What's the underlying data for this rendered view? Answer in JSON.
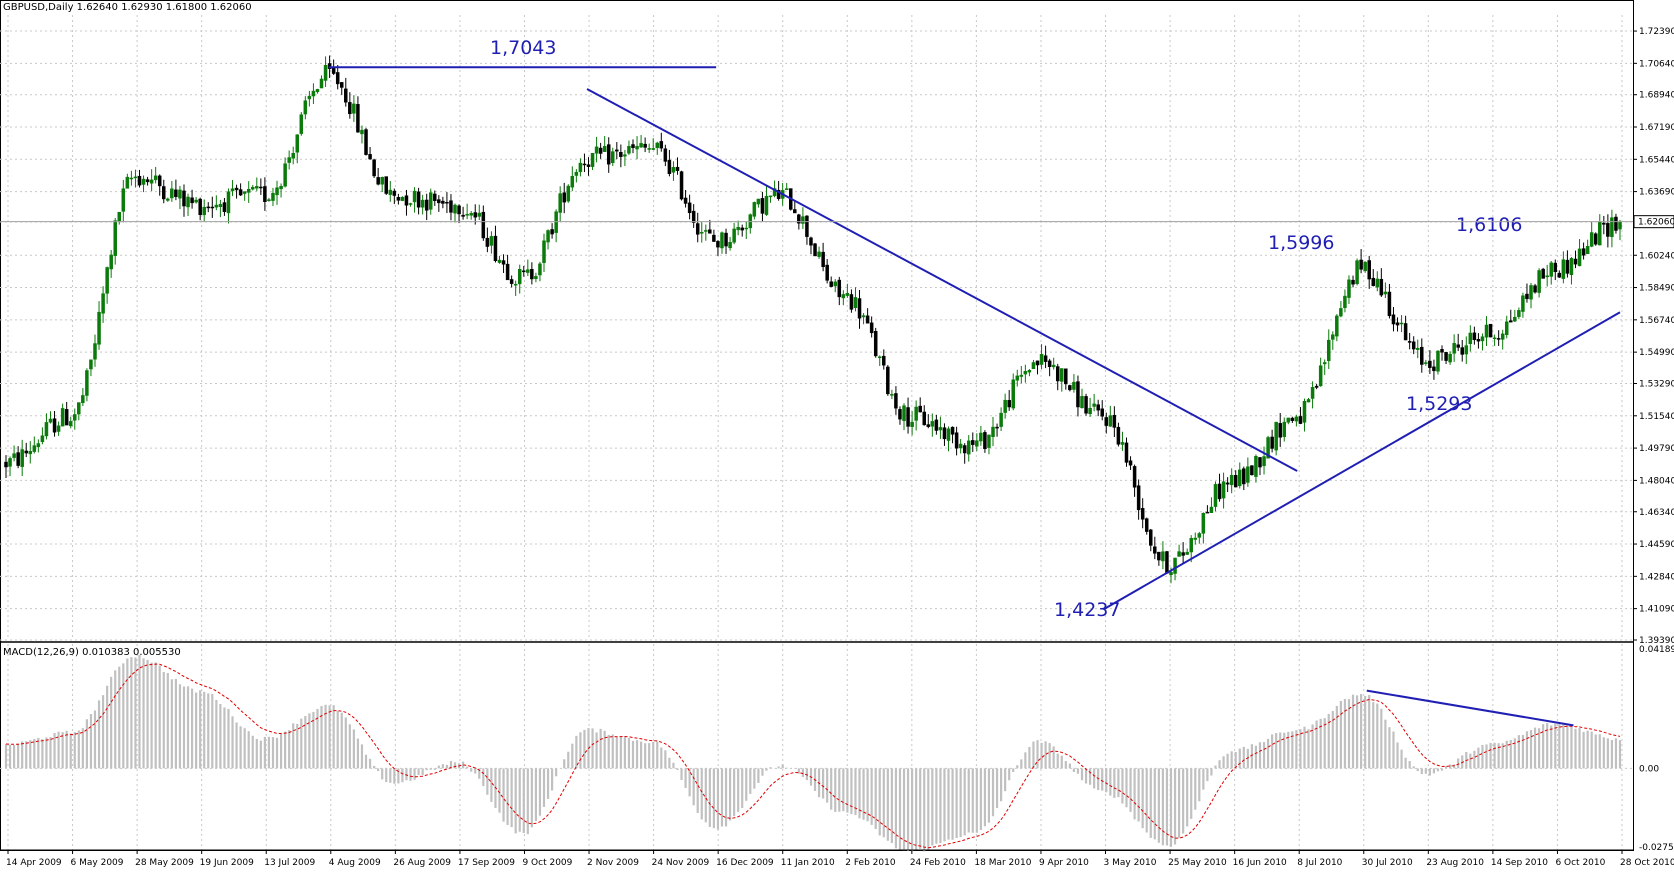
{
  "header": {
    "symbol_info": "GBPUSD,Daily  1.62640 1.62930 1.61800 1.62060",
    "macd_info": "MACD(12,26,9) 0.010383 0.005530"
  },
  "chart_data": [
    {
      "type": "candlestick",
      "symbol": "GBPUSD",
      "timeframe": "Daily",
      "ohlc_last": {
        "open": 1.6264,
        "high": 1.6293,
        "low": 1.618,
        "close": 1.6206
      },
      "y_ticks": [
        "1.72390",
        "1.70640",
        "1.68940",
        "1.67190",
        "1.65440",
        "1.63690",
        "1.62040",
        "1.60240",
        "1.58490",
        "1.56740",
        "1.54990",
        "1.53290",
        "1.51540",
        "1.49790",
        "1.48040",
        "1.46340",
        "1.44590",
        "1.42840",
        "1.41090",
        "1.39390"
      ],
      "ylim": [
        1.3939,
        1.7326
      ],
      "current_price_label": "1.62060",
      "x_labels": [
        "14 Apr 2009",
        "6 May 2009",
        "28 May 2009",
        "19 Jun 2009",
        "13 Jul 2009",
        "4 Aug 2009",
        "26 Aug 2009",
        "17 Sep 2009",
        "9 Oct 2009",
        "2 Nov 2009",
        "24 Nov 2009",
        "16 Dec 2009",
        "11 Jan 2010",
        "2 Feb 2010",
        "24 Feb 2010",
        "18 Mar 2010",
        "9 Apr 2010",
        "3 May 2010",
        "25 May 2010",
        "16 Jun 2010",
        "8 Jul 2010",
        "30 Jul 2010",
        "23 Aug 2010",
        "14 Sep 2010",
        "6 Oct 2010",
        "28 Oct 2010"
      ],
      "price_path": [
        [
          "14 Apr 2009",
          1.49
        ],
        [
          "6 May 2009",
          1.515
        ],
        [
          "28 May 2009",
          1.645
        ],
        [
          "19 Jun 2009",
          1.63
        ],
        [
          "13 Jul 2009",
          1.635
        ],
        [
          "4 Aug 2009",
          1.7
        ],
        [
          "26 Aug 2009",
          1.635
        ],
        [
          "17 Sep 2009",
          1.63
        ],
        [
          "9 Oct 2009",
          1.59
        ],
        [
          "2 Nov 2009",
          1.655
        ],
        [
          "24 Nov 2009",
          1.66
        ],
        [
          "16 Dec 2009",
          1.61
        ],
        [
          "11 Jan 2010",
          1.635
        ],
        [
          "2 Feb 2010",
          1.58
        ],
        [
          "24 Feb 2010",
          1.515
        ],
        [
          "18 Mar 2010",
          1.5
        ],
        [
          "9 Apr 2010",
          1.545
        ],
        [
          "3 May 2010",
          1.515
        ],
        [
          "25 May 2010",
          1.435
        ],
        [
          "16 Jun 2010",
          1.48
        ],
        [
          "8 Jul 2010",
          1.515
        ],
        [
          "30 Jul 2010",
          1.595
        ],
        [
          "23 Aug 2010",
          1.545
        ],
        [
          "14 Sep 2010",
          1.56
        ],
        [
          "6 Oct 2010",
          1.595
        ],
        [
          "28 Oct 2010",
          1.6206
        ]
      ],
      "annotations": [
        "1,7043",
        "1,5996",
        "1,6106",
        "1,5293",
        "1,4237"
      ],
      "trendlines": [
        {
          "from": [
            "4 Aug 2009",
            1.7043
          ],
          "to": [
            "16 Dec 2009",
            1.7043
          ]
        },
        {
          "from": [
            "2 Nov 2009",
            1.6925
          ],
          "to": [
            "8 Jul 2010",
            1.4855
          ]
        },
        {
          "from": [
            "3 May 2010",
            1.4105
          ],
          "to": [
            "28 Oct 2010",
            1.5715
          ]
        }
      ],
      "colors": {
        "up": "#0a7a0a",
        "down": "#000000",
        "trendline": "#1f1fb4",
        "annotation": "#1f1fb4"
      }
    },
    {
      "type": "histogram",
      "indicator": "MACD",
      "params": "12,26,9",
      "values": {
        "main": 0.010383,
        "signal": 0.00553
      },
      "y_ticks": [
        "0.041892",
        "0.00",
        "-0.02753"
      ],
      "ylim": [
        -0.0275,
        0.0419
      ],
      "histogram_path": [
        [
          "14 Apr 2009",
          0.008
        ],
        [
          "6 May 2009",
          0.012
        ],
        [
          "28 May 2009",
          0.038
        ],
        [
          "19 Jun 2009",
          0.026
        ],
        [
          "13 Jul 2009",
          0.01
        ],
        [
          "4 Aug 2009",
          0.021
        ],
        [
          "26 Aug 2009",
          -0.005
        ],
        [
          "17 Sep 2009",
          0.002
        ],
        [
          "9 Oct 2009",
          -0.022
        ],
        [
          "2 Nov 2009",
          0.013
        ],
        [
          "24 Nov 2009",
          0.009
        ],
        [
          "16 Dec 2009",
          -0.02
        ],
        [
          "11 Jan 2010",
          0.001
        ],
        [
          "2 Feb 2010",
          -0.015
        ],
        [
          "24 Feb 2010",
          -0.028
        ],
        [
          "18 Mar 2010",
          -0.022
        ],
        [
          "9 Apr 2010",
          0.009
        ],
        [
          "3 May 2010",
          -0.008
        ],
        [
          "25 May 2010",
          -0.026
        ],
        [
          "16 Jun 2010",
          0.006
        ],
        [
          "8 Jul 2010",
          0.013
        ],
        [
          "30 Jul 2010",
          0.025
        ],
        [
          "23 Aug 2010",
          -0.002
        ],
        [
          "14 Sep 2010",
          0.008
        ],
        [
          "6 Oct 2010",
          0.015
        ],
        [
          "28 Oct 2010",
          0.01
        ]
      ],
      "divergence_line": {
        "from": [
          "30 Jul 2010",
          0.0262
        ],
        "to": [
          "6 Oct 2010",
          0.0145
        ]
      },
      "colors": {
        "bars": "#c0c0c0",
        "signal": "#e00000",
        "divergence": "#1f1fb4"
      }
    }
  ]
}
